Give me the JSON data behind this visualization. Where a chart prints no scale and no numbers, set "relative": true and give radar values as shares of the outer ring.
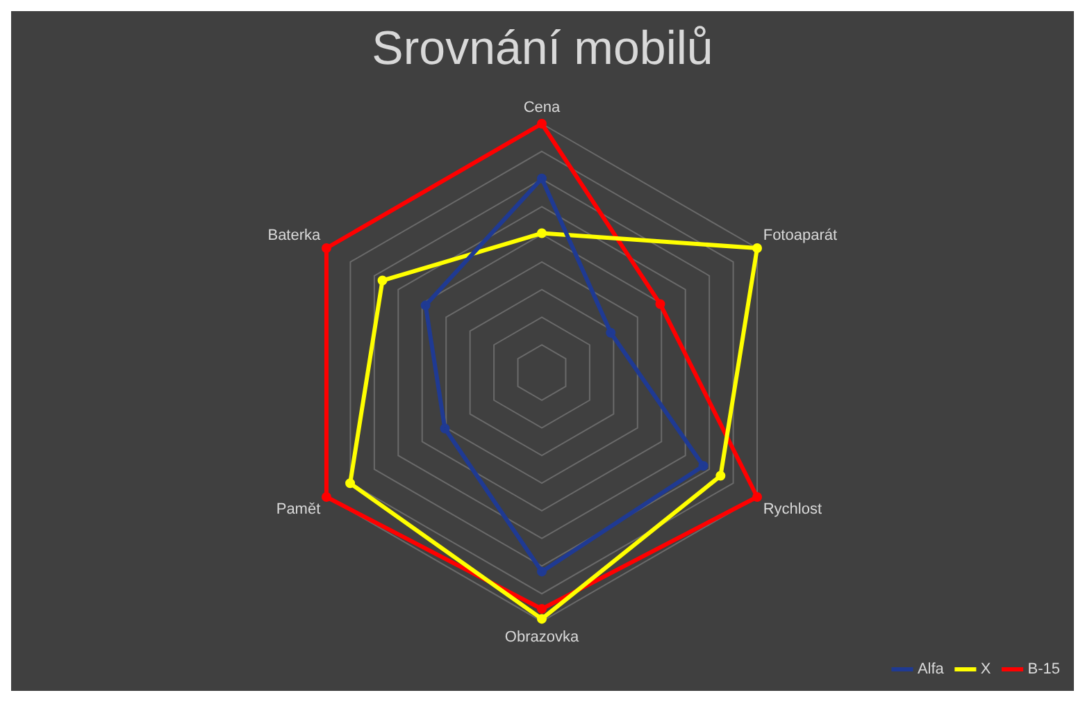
{
  "chart_data": {
    "type": "radar",
    "title": "Srovnání mobilů",
    "relative": true,
    "grid": true,
    "legend": "bottom right",
    "marker": "circle",
    "line_style": "solid",
    "categories": [
      "Cena",
      "Fotoaparát",
      "Rychlost",
      "Obrazovka",
      "Pamět",
      "Baterka"
    ],
    "series": [
      {
        "name": "Alfa",
        "color": "#1f3a93",
        "values": [
          0.78,
          0.32,
          0.75,
          0.8,
          0.45,
          0.54
        ]
      },
      {
        "name": "X",
        "color": "#ffff00",
        "values": [
          0.56,
          1,
          0.83,
          0.99,
          0.89,
          0.74
        ]
      },
      {
        "name": "B-15",
        "color": "#ff0000",
        "values": [
          1,
          0.55,
          1,
          0.95,
          1,
          1
        ]
      }
    ]
  }
}
